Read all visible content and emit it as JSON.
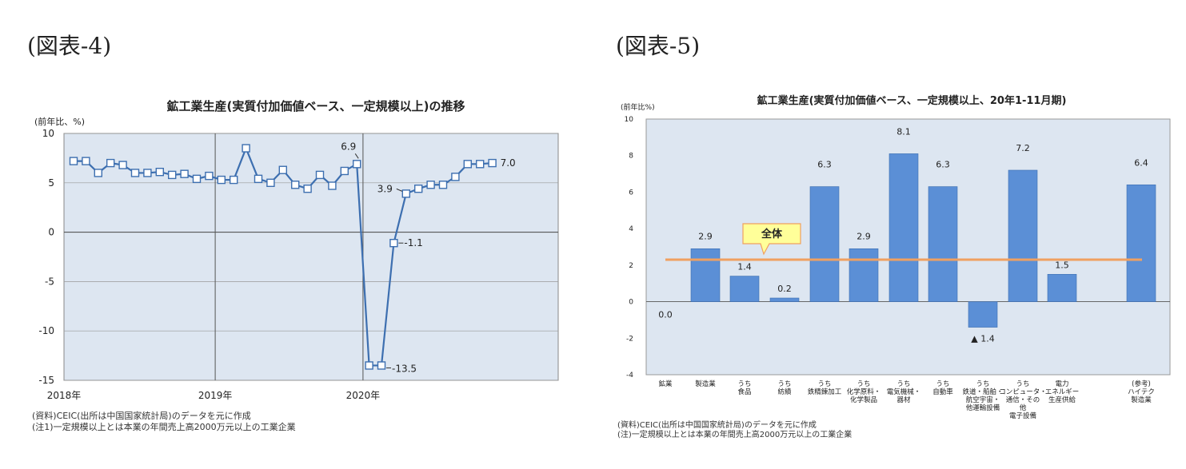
{
  "figures": [
    {
      "label": "(図表-4)",
      "notes": [
        "(資料)CEIC(出所は中国国家統計局)のデータを元に作成",
        "(注1)一定規模以上とは本業の年間売上高2000万元以上の工業企業"
      ]
    },
    {
      "label": "(図表-5)",
      "notes": [
        "(資料)CEIC(出所は中国国家統計局)のデータを元に作成",
        "(注)一定規模以上とは本業の年間売上高2000万元以上の工業企業"
      ]
    }
  ],
  "chart_data": [
    {
      "type": "line",
      "title": "鉱工業生産(実質付加価値ベース、一定規模以上)の推移",
      "ylabel": "(前年比、%)",
      "ylim": [
        -15,
        10
      ],
      "yticks": [
        "10",
        "5",
        "0",
        "-5",
        "-10",
        "-15"
      ],
      "xtick_labels": [
        "2018年",
        "2019年",
        "2020年"
      ],
      "grid": true,
      "colors": {
        "line": "#3d6fb0",
        "marker_fill": "#ffffff",
        "background": "#dde6f1"
      },
      "series": [
        {
          "values": [
            7.2,
            7.2,
            6.0,
            7.0,
            6.8,
            6.0,
            6.0,
            6.1,
            5.8,
            5.9,
            5.4,
            5.7,
            5.3,
            5.3,
            8.5,
            5.4,
            5.0,
            6.3,
            4.8,
            4.4,
            5.8,
            4.7,
            6.2,
            6.9,
            -13.5,
            -13.5,
            -1.1,
            3.9,
            4.4,
            4.8,
            4.8,
            5.6,
            6.9,
            6.9,
            7.0
          ]
        }
      ],
      "annotations": [
        "6.9",
        "3.9",
        "-1.1",
        "-13.5",
        "7.0"
      ]
    },
    {
      "type": "bar",
      "title": "鉱工業生産(実質付加価値ベース、一定規模以上、20年1-11月期)",
      "ylabel": "(前年比%)",
      "ylim": [
        -4,
        10
      ],
      "yticks": [
        "10",
        "8",
        "6",
        "4",
        "2",
        "0",
        "-2",
        "-4"
      ],
      "categories": [
        "鉱業",
        "製造業",
        "うち 食品",
        "うち 紡績",
        "うち 鉄精錬加工",
        "うち 化学原料・ 化学製品",
        "うち 電気機械・ 器材",
        "うち 自動車",
        "うち 鉄道・船舶・ 航空宇宙・ 他運輸設備",
        "うち コンピュータ・ 通信・その 他 電子設備",
        "電力 エネルギー 生産供給",
        "(参考) ハイテク 製造業"
      ],
      "values": [
        0.0,
        2.9,
        1.4,
        0.2,
        6.3,
        2.9,
        8.1,
        6.3,
        -1.4,
        7.2,
        1.5,
        6.4
      ],
      "value_labels": [
        "0.0",
        "2.9",
        "1.4",
        "0.2",
        "6.3",
        "2.9",
        "8.1",
        "6.3",
        "▲ 1.4",
        "7.2",
        "1.5",
        "6.4"
      ],
      "reference_line": {
        "label": "全体",
        "value": 2.3
      },
      "colors": {
        "bar": "#5b8fd6",
        "reference": "#f0a060",
        "background": "#dde6f1",
        "callout": "#ffff99"
      }
    }
  ]
}
